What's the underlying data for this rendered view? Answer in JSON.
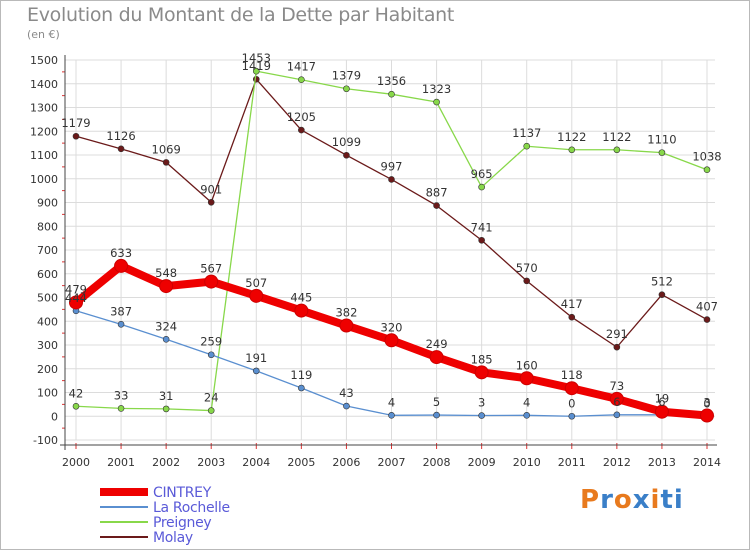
{
  "chart_data": {
    "type": "line",
    "title": "Evolution du Montant de la Dette par Habitant",
    "subtitle": "(en €)",
    "categories": [
      "2000",
      "2001",
      "2002",
      "2003",
      "2004",
      "2005",
      "2006",
      "2007",
      "2008",
      "2009",
      "2010",
      "2011",
      "2012",
      "2013",
      "2014"
    ],
    "ylim": [
      -100,
      1500
    ],
    "yticks": [
      "-100",
      "0",
      "100",
      "200",
      "300",
      "400",
      "500",
      "600",
      "700",
      "800",
      "900",
      "1000",
      "1100",
      "1200",
      "1300",
      "1400",
      "1500"
    ],
    "grid": true,
    "legend_position": "bottom-left",
    "series": [
      {
        "name": "CINTREY",
        "color": "#ee0000",
        "values": [
          479,
          633,
          548,
          567,
          507,
          445,
          382,
          320,
          249,
          185,
          160,
          118,
          73,
          19,
          3
        ],
        "labels": [
          "479",
          "633",
          "548",
          "567",
          "507",
          "445",
          "382",
          "320",
          "249",
          "185",
          "160",
          "118",
          "73",
          "19",
          "3"
        ]
      },
      {
        "name": "La Rochelle",
        "color": "#5a8fd0",
        "values": [
          444,
          387,
          324,
          259,
          191,
          119,
          43,
          4,
          5,
          3,
          4,
          0,
          6,
          6,
          0
        ],
        "labels": [
          "444",
          "387",
          "324",
          "259",
          "191",
          "119",
          "43",
          "4",
          "5",
          "3",
          "4",
          "0",
          "6",
          "6",
          "0"
        ]
      },
      {
        "name": "Preigney",
        "color": "#88d84a",
        "values": [
          42,
          33,
          31,
          24,
          1453,
          1417,
          1379,
          1356,
          1323,
          965,
          1137,
          1122,
          1122,
          1110,
          1038
        ],
        "labels": [
          "42",
          "33",
          "31",
          "24",
          "1453",
          "1417",
          "1379",
          "1356",
          "1323",
          "965",
          "1137",
          "1122",
          "1122",
          "1110",
          "1038"
        ]
      },
      {
        "name": "Molay",
        "color": "#6b1a1a",
        "values": [
          1179,
          1126,
          1069,
          901,
          1419,
          1205,
          1099,
          997,
          887,
          741,
          570,
          417,
          291,
          512,
          407
        ],
        "labels": [
          "1179",
          "1126",
          "1069",
          "901",
          "1419",
          "1205",
          "1099",
          "997",
          "887",
          "741",
          "570",
          "417",
          "291",
          "512",
          "407"
        ]
      }
    ]
  },
  "legend": {
    "items": [
      {
        "label": "CINTREY",
        "color": "#ee0000"
      },
      {
        "label": "La Rochelle",
        "color": "#5a8fd0"
      },
      {
        "label": "Preigney",
        "color": "#88d84a"
      },
      {
        "label": "Molay",
        "color": "#6b1a1a"
      }
    ]
  },
  "logo": {
    "text": "Proxiti"
  }
}
